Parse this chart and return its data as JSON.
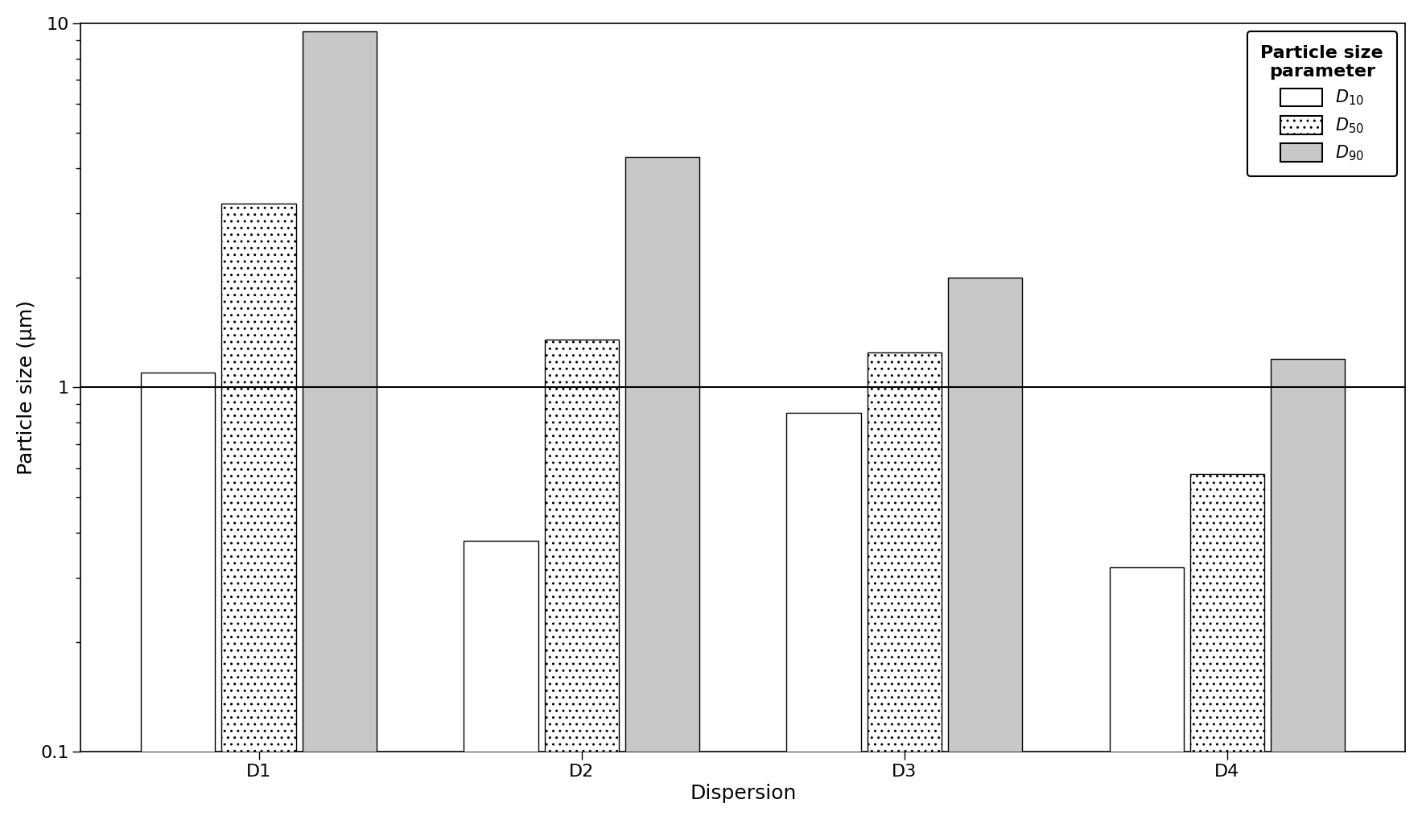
{
  "categories": [
    "D1",
    "D2",
    "D3",
    "D4"
  ],
  "D10": [
    1.1,
    0.38,
    0.85,
    0.32
  ],
  "D50": [
    3.2,
    1.35,
    1.25,
    0.58
  ],
  "D90": [
    9.5,
    4.3,
    2.0,
    1.2
  ],
  "ylabel": "Particle size (µm)",
  "xlabel": "Dispersion",
  "legend_title": "Particle size\nparameter",
  "ylim": [
    0.1,
    10
  ],
  "hline_y": 1.0,
  "bar_colors": [
    "white",
    "white",
    "#c8c8c8"
  ],
  "bar_hatches": [
    "",
    "..",
    ""
  ],
  "edgecolor": "black",
  "background_color": "white",
  "figsize": [
    17.67,
    10.19
  ],
  "dpi": 100
}
